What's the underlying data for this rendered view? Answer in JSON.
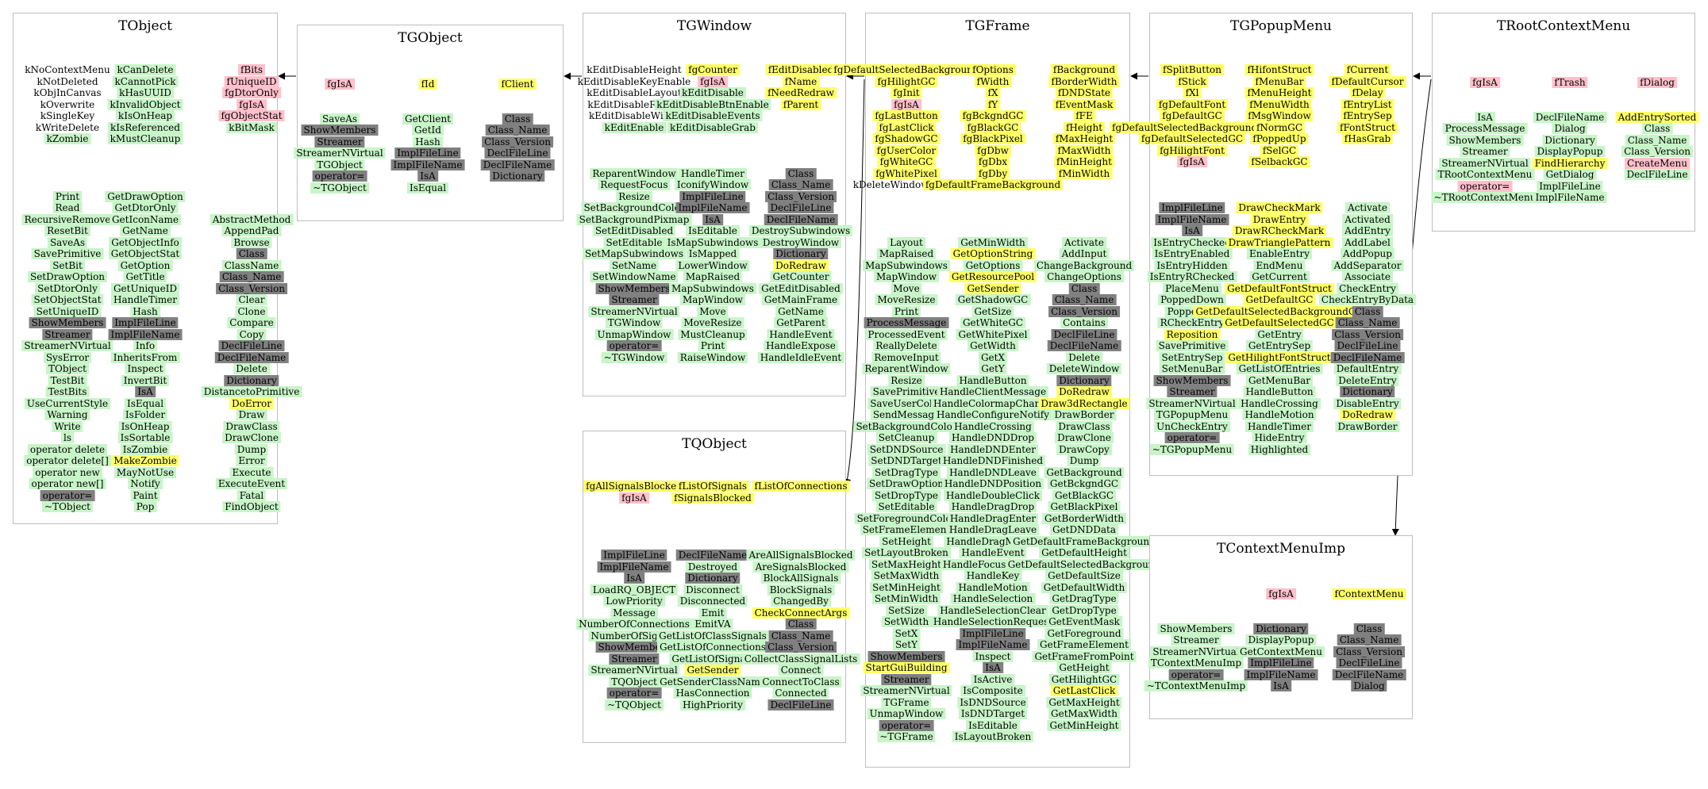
{
  "colors": {
    "public_method": "#c8f5c8",
    "data_member": "#ffff66",
    "static_member": "#ffc0cb",
    "dictionary_method": "#808080",
    "border": "#bfbfbf",
    "edge": "#000000"
  },
  "diagram": {
    "classes": [
      {
        "id": "TObject",
        "title": "TObject",
        "cols": [
          [
            "n:kNoContextMenu",
            "n:kNotDeleted",
            "n:kObjInCanvas",
            "n:kOverwrite",
            "n:kSingleKey",
            "n:kWriteDelete",
            "g:kZombie",
            "",
            "",
            "",
            "",
            "g:Print",
            "g:Read",
            "g:RecursiveRemove",
            "g:ResetBit",
            "g:SaveAs",
            "g:SavePrimitive",
            "g:SetBit",
            "g:SetDrawOption",
            "g:SetDtorOnly",
            "g:SetObjectStat",
            "g:SetUniqueID",
            "k:ShowMembers",
            "k:Streamer",
            "g:StreamerNVirtual",
            "g:SysError",
            "g:TObject",
            "g:TestBit",
            "g:TestBits",
            "g:UseCurrentStyle",
            "g:Warning",
            "g:Write",
            "g:ls",
            "g:operator delete",
            "g:operator delete[]",
            "g:operator new",
            "g:operator new[]",
            "k:operator=",
            "g:~TObject"
          ],
          [
            "g:kCanDelete",
            "g:kCannotPick",
            "g:kHasUUID",
            "g:kInvalidObject",
            "g:kIsOnHeap",
            "g:kIsReferenced",
            "g:kMustCleanup",
            "",
            "",
            "",
            "",
            "g:GetDrawOption",
            "g:GetDtorOnly",
            "g:GetIconName",
            "g:GetName",
            "g:GetObjectInfo",
            "g:GetObjectStat",
            "g:GetOption",
            "g:GetTitle",
            "g:GetUniqueID",
            "g:HandleTimer",
            "g:Hash",
            "k:ImplFileLine",
            "k:ImplFileName",
            "g:Info",
            "g:InheritsFrom",
            "g:Inspect",
            "g:InvertBit",
            "k:IsA",
            "g:IsEqual",
            "g:IsFolder",
            "g:IsOnHeap",
            "g:IsSortable",
            "g:IsZombie",
            "y:MakeZombie",
            "g:MayNotUse",
            "g:Notify",
            "g:Paint",
            "g:Pop"
          ],
          [
            "r:fBits",
            "r:fUniqueID",
            "r:fgDtorOnly",
            "r:fgIsA",
            "r:fgObjectStat",
            "g:kBitMask",
            "",
            "",
            "",
            "",
            "",
            "",
            "",
            "g:AbstractMethod",
            "g:AppendPad",
            "g:Browse",
            "k:Class",
            "g:ClassName",
            "k:Class_Name",
            "k:Class_Version",
            "g:Clear",
            "g:Clone",
            "g:Compare",
            "g:Copy",
            "k:DeclFileLine",
            "k:DeclFileName",
            "g:Delete",
            "k:Dictionary",
            "g:DistancetoPrimitive",
            "y:DoError",
            "g:Draw",
            "g:DrawClass",
            "g:DrawClone",
            "g:Dump",
            "g:Error",
            "g:Execute",
            "g:ExecuteEvent",
            "g:Fatal",
            "g:FindObject"
          ]
        ]
      },
      {
        "id": "TGObject",
        "title": "TGObject",
        "cols": [
          [
            "r:fgIsA",
            "",
            "",
            "g:SaveAs",
            "k:ShowMembers",
            "k:Streamer",
            "g:StreamerNVirtual",
            "g:TGObject",
            "k:operator=",
            "g:~TGObject"
          ],
          [
            "y:fId",
            "",
            "",
            "g:GetClient",
            "g:GetId",
            "g:Hash",
            "k:ImplFileLine",
            "k:ImplFileName",
            "k:IsA",
            "g:IsEqual"
          ],
          [
            "y:fClient",
            "",
            "",
            "k:Class",
            "k:Class_Name",
            "k:Class_Version",
            "k:DeclFileLine",
            "k:DeclFileName",
            "k:Dictionary"
          ]
        ]
      },
      {
        "id": "TGWindow",
        "title": "TGWindow",
        "cols": [
          [
            "n:kEditDisableHeight",
            "n:kEditDisableKeyEnable",
            "n:kEditDisableLayout",
            "n:kEditDisableResize",
            "n:kEditDisableWidth",
            "g:kEditEnable",
            "",
            "",
            "",
            "g:ReparentWindow",
            "g:RequestFocus",
            "g:Resize",
            "g:SetBackgroundColor",
            "g:SetBackgroundPixmap",
            "g:SetEditDisabled",
            "g:SetEditable",
            "g:SetMapSubwindows",
            "g:SetName",
            "g:SetWindowName",
            "k:ShowMembers",
            "k:Streamer",
            "g:StreamerNVirtual",
            "g:TGWindow",
            "g:UnmapWindow",
            "k:operator=",
            "g:~TGWindow"
          ],
          [
            "y:fgCounter",
            "r:fgIsA",
            "g:kEditDisable",
            "g:kEditDisableBtnEnable",
            "g:kEditDisableEvents",
            "g:kEditDisableGrab",
            "",
            "",
            "",
            "g:HandleTimer",
            "g:IconifyWindow",
            "k:ImplFileLine",
            "k:ImplFileName",
            "k:IsA",
            "g:IsEditable",
            "g:IsMapSubwindows",
            "g:IsMapped",
            "g:LowerWindow",
            "g:MapRaised",
            "g:MapSubwindows",
            "g:MapWindow",
            "g:Move",
            "g:MoveResize",
            "g:MustCleanup",
            "g:Print",
            "g:RaiseWindow"
          ],
          [
            "y:fEditDisabled",
            "y:fName",
            "y:fNeedRedraw",
            "y:fParent",
            "",
            "",
            "",
            "",
            "",
            "k:Class",
            "k:Class_Name",
            "k:Class_Version",
            "k:DeclFileLine",
            "k:DeclFileName",
            "g:DestroySubwindows",
            "g:DestroyWindow",
            "k:Dictionary",
            "y:DoRedraw",
            "g:GetCounter",
            "g:GetEditDisabled",
            "g:GetMainFrame",
            "g:GetName",
            "g:GetParent",
            "g:HandleEvent",
            "g:HandleExpose",
            "g:HandleIdleEvent"
          ]
        ]
      },
      {
        "id": "TGFrame",
        "title": "TGFrame",
        "cols": [
          [
            "y:fgDefaultSelectedBackground",
            "y:fgHilightGC",
            "y:fgInit",
            "r:fgIsA",
            "y:fgLastButton",
            "y:fgLastClick",
            "y:fgShadowGC",
            "y:fgUserColor",
            "y:fgWhiteGC",
            "y:fgWhitePixel",
            "n:kDeleteWindowCalled",
            "",
            "",
            "",
            "",
            "g:Layout",
            "g:MapRaised",
            "g:MapSubwindows",
            "g:MapWindow",
            "g:Move",
            "g:MoveResize",
            "g:Print",
            "k:ProcessMessage",
            "g:ProcessedEvent",
            "g:ReallyDelete",
            "g:RemoveInput",
            "g:ReparentWindow",
            "g:Resize",
            "g:SavePrimitive",
            "g:SaveUserColor",
            "g:SendMessage",
            "g:SetBackgroundColor",
            "g:SetCleanup",
            "g:SetDNDSource",
            "g:SetDNDTarget",
            "g:SetDragType",
            "g:SetDrawOption",
            "g:SetDropType",
            "g:SetEditable",
            "g:SetForegroundColor",
            "g:SetFrameElement",
            "g:SetHeight",
            "g:SetLayoutBroken",
            "g:SetMaxHeight",
            "g:SetMaxWidth",
            "g:SetMinHeight",
            "g:SetMinWidth",
            "g:SetSize",
            "g:SetWidth",
            "g:SetX",
            "g:SetY",
            "k:ShowMembers",
            "y:StartGuiBuilding",
            "k:Streamer",
            "g:StreamerNVirtual",
            "g:TGFrame",
            "g:UnmapWindow",
            "k:operator=",
            "g:~TGFrame"
          ],
          [
            "y:fOptions",
            "y:fWidth",
            "y:fX",
            "y:fY",
            "y:fgBckgndGC",
            "y:fgBlackGC",
            "y:fgBlackPixel",
            "y:fgDbw",
            "y:fgDbx",
            "y:fgDby",
            "y:fgDefaultFrameBackground",
            "",
            "",
            "",
            "",
            "g:GetMinWidth",
            "y:GetOptionString",
            "g:GetOptions",
            "y:GetResourcePool",
            "y:GetSender",
            "g:GetShadowGC",
            "g:GetSize",
            "g:GetWhiteGC",
            "g:GetWhitePixel",
            "g:GetWidth",
            "g:GetX",
            "g:GetY",
            "g:HandleButton",
            "g:HandleClientMessage",
            "g:HandleColormapChange",
            "g:HandleConfigureNotify",
            "g:HandleCrossing",
            "g:HandleDNDDrop",
            "g:HandleDNDEnter",
            "g:HandleDNDFinished",
            "g:HandleDNDLeave",
            "g:HandleDNDPosition",
            "g:HandleDoubleClick",
            "g:HandleDragDrop",
            "g:HandleDragEnter",
            "g:HandleDragLeave",
            "g:HandleDragMotion",
            "g:HandleEvent",
            "g:HandleFocusChange",
            "g:HandleKey",
            "g:HandleMotion",
            "g:HandleSelection",
            "g:HandleSelectionClear",
            "g:HandleSelectionRequest",
            "k:ImplFileLine",
            "k:ImplFileName",
            "g:Inspect",
            "k:IsA",
            "g:IsActive",
            "g:IsComposite",
            "g:IsDNDSource",
            "g:IsDNDTarget",
            "g:IsEditable",
            "g:IsLayoutBroken"
          ],
          [
            "y:fBackground",
            "y:fBorderWidth",
            "y:fDNDState",
            "y:fEventMask",
            "y:fFE",
            "y:fHeight",
            "y:fMaxHeight",
            "y:fMaxWidth",
            "y:fMinHeight",
            "y:fMinWidth",
            "",
            "",
            "",
            "",
            "",
            "g:Activate",
            "g:AddInput",
            "g:ChangeBackground",
            "g:ChangeOptions",
            "k:Class",
            "k:Class_Name",
            "k:Class_Version",
            "g:Contains",
            "k:DeclFileLine",
            "k:DeclFileName",
            "g:Delete",
            "g:DeleteWindow",
            "k:Dictionary",
            "y:DoRedraw",
            "y:Draw3dRectangle",
            "g:DrawBorder",
            "g:DrawClass",
            "g:DrawClone",
            "g:DrawCopy",
            "g:Dump",
            "g:GetBackground",
            "g:GetBckgndGC",
            "g:GetBlackGC",
            "g:GetBlackPixel",
            "g:GetBorderWidth",
            "g:GetDNDData",
            "g:GetDefaultFrameBackground",
            "g:GetDefaultHeight",
            "g:GetDefaultSelectedBackground",
            "g:GetDefaultSize",
            "g:GetDefaultWidth",
            "g:GetDragType",
            "g:GetDropType",
            "g:GetEventMask",
            "g:GetForeground",
            "g:GetFrameElement",
            "g:GetFrameFromPoint",
            "g:GetHeight",
            "g:GetHilightGC",
            "y:GetLastClick",
            "g:GetMaxHeight",
            "g:GetMaxWidth",
            "g:GetMinHeight"
          ]
        ]
      },
      {
        "id": "TGPopupMenu",
        "title": "TGPopupMenu",
        "cols": [
          [
            "y:fSplitButton",
            "y:fStick",
            "y:fXl",
            "y:fgDefaultFont",
            "y:fgDefaultGC",
            "y:fgDefaultSelectedBackgroundGC",
            "y:fgDefaultSelectedGC",
            "y:fgHilightFont",
            "r:fgIsA",
            "",
            "",
            "",
            "k:ImplFileLine",
            "k:ImplFileName",
            "k:IsA",
            "g:IsEntryChecked",
            "g:IsEntryEnabled",
            "g:IsEntryHidden",
            "g:IsEntryRChecked",
            "g:PlaceMenu",
            "g:PoppedDown",
            "g:PoppedUp",
            "g:RCheckEntry",
            "y:Reposition",
            "g:SavePrimitive",
            "g:SetEntrySep",
            "g:SetMenuBar",
            "k:ShowMembers",
            "k:Streamer",
            "g:StreamerNVirtual",
            "g:TGPopupMenu",
            "g:UnCheckEntry",
            "k:operator=",
            "g:~TGPopupMenu"
          ],
          [
            "y:fHifontStruct",
            "y:fMenuBar",
            "y:fMenuHeight",
            "y:fMenuWidth",
            "y:fMsgWindow",
            "y:fNormGC",
            "y:fPoppedUp",
            "y:fSelGC",
            "y:fSelbackGC",
            "",
            "",
            "",
            "y:DrawCheckMark",
            "y:DrawEntry",
            "y:DrawRCheckMark",
            "y:DrawTrianglePattern",
            "g:EnableEntry",
            "g:EndMenu",
            "g:GetCurrent",
            "y:GetDefaultFontStruct",
            "y:GetDefaultGC",
            "y:GetDefaultSelectedBackgroundGC",
            "y:GetDefaultSelectedGC",
            "g:GetEntry",
            "g:GetEntrySep",
            "y:GetHilightFontStruct",
            "g:GetListOfEntries",
            "g:GetMenuBar",
            "g:HandleButton",
            "g:HandleCrossing",
            "g:HandleMotion",
            "g:HandleTimer",
            "g:HideEntry",
            "g:Highlighted"
          ],
          [
            "y:fCurrent",
            "y:fDefaultCursor",
            "y:fDelay",
            "y:fEntryList",
            "y:fEntrySep",
            "y:fFontStruct",
            "y:fHasGrab",
            "",
            "",
            "",
            "",
            "",
            "g:Activate",
            "g:Activated",
            "g:AddEntry",
            "g:AddLabel",
            "g:AddPopup",
            "g:AddSeparator",
            "g:Associate",
            "g:CheckEntry",
            "g:CheckEntryByData",
            "k:Class",
            "k:Class_Name",
            "k:Class_Version",
            "k:DeclFileLine",
            "k:DeclFileName",
            "g:DefaultEntry",
            "g:DeleteEntry",
            "k:Dictionary",
            "g:DisableEntry",
            "y:DoRedraw",
            "g:DrawBorder"
          ]
        ]
      },
      {
        "id": "TRootContextMenu",
        "title": "TRootContextMenu",
        "cols": [
          [
            "r:fgIsA",
            "",
            "",
            "g:IsA",
            "g:ProcessMessage",
            "g:ShowMembers",
            "g:Streamer",
            "g:StreamerNVirtual",
            "g:TRootContextMenu",
            "r:operator=",
            "g:~TRootContextMenu"
          ],
          [
            "r:fTrash",
            "",
            "",
            "g:DeclFileName",
            "g:Dialog",
            "g:Dictionary",
            "g:DisplayPopup",
            "y:FindHierarchy",
            "g:GetDialog",
            "g:ImplFileLine",
            "g:ImplFileName"
          ],
          [
            "r:fDialog",
            "",
            "",
            "y:AddEntrySorted",
            "g:Class",
            "g:Class_Name",
            "g:Class_Version",
            "r:CreateMenu",
            "g:DeclFileLine"
          ]
        ]
      },
      {
        "id": "TQObject",
        "title": "TQObject",
        "cols": [
          [
            "y:fgAllSignalsBlocked",
            "r:fgIsA",
            "",
            "",
            "",
            "",
            "k:ImplFileLine",
            "k:ImplFileName",
            "k:IsA",
            "g:LoadRQ_OBJECT",
            "g:LowPriority",
            "g:Message",
            "g:NumberOfConnections",
            "g:NumberOfSignals",
            "k:ShowMembers",
            "k:Streamer",
            "g:StreamerNVirtual",
            "g:TQObject",
            "k:operator=",
            "g:~TQObject"
          ],
          [
            "y:fListOfSignals",
            "y:fSignalsBlocked",
            "",
            "",
            "",
            "",
            "k:DeclFileName",
            "g:Destroyed",
            "k:Dictionary",
            "g:Disconnect",
            "g:Disconnected",
            "g:Emit",
            "g:EmitVA",
            "g:GetListOfClassSignals",
            "g:GetListOfConnections",
            "g:GetListOfSignals",
            "y:GetSender",
            "g:GetSenderClassName",
            "g:HasConnection",
            "g:HighPriority"
          ],
          [
            "y:fListOfConnections",
            "",
            "",
            "",
            "",
            "",
            "g:AreAllSignalsBlocked",
            "g:AreSignalsBlocked",
            "g:BlockAllSignals",
            "g:BlockSignals",
            "g:ChangedBy",
            "y:CheckConnectArgs",
            "k:Class",
            "k:Class_Name",
            "k:Class_Version",
            "g:CollectClassSignalLists",
            "g:Connect",
            "g:ConnectToClass",
            "g:Connected",
            "k:DeclFileLine"
          ]
        ]
      },
      {
        "id": "TContextMenuImp",
        "title": "TContextMenuImp",
        "cols": [
          [
            "",
            "",
            "",
            "g:ShowMembers",
            "g:Streamer",
            "g:StreamerNVirtual",
            "g:TContextMenuImp",
            "k:operator=",
            "g:~TContextMenuImp"
          ],
          [
            "r:fgIsA",
            "",
            "",
            "k:Dictionary",
            "g:DisplayPopup",
            "g:GetContextMenu",
            "k:ImplFileLine",
            "k:ImplFileName",
            "k:IsA"
          ],
          [
            "y:fContextMenu",
            "",
            "",
            "k:Class",
            "k:Class_Name",
            "k:Class_Version",
            "k:DeclFileLine",
            "k:DeclFileName",
            "k:Dialog"
          ]
        ]
      }
    ]
  }
}
